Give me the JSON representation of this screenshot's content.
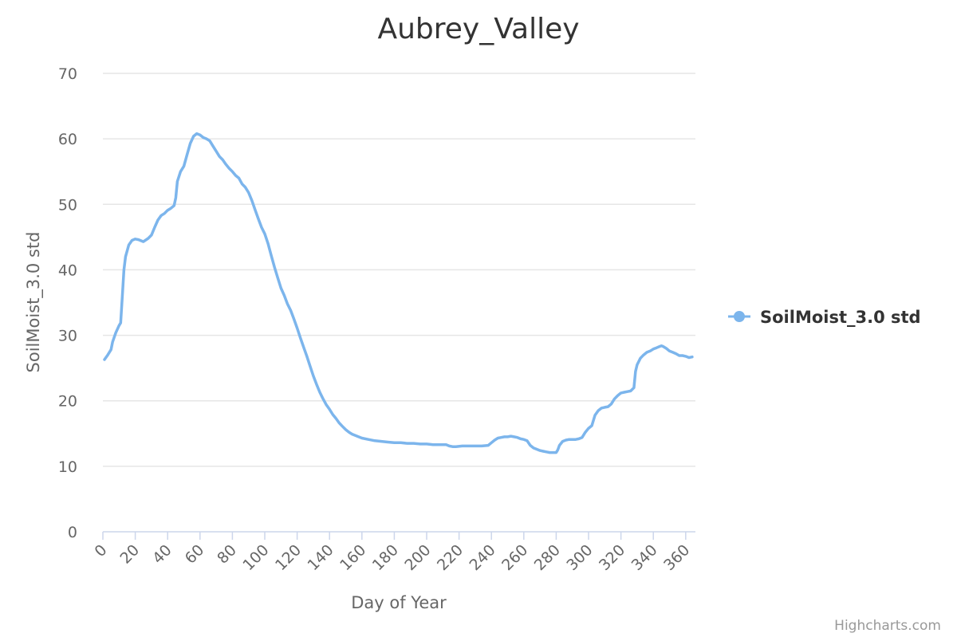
{
  "chart_data": {
    "type": "line",
    "title": "Aubrey_Valley",
    "xlabel": "Day of Year",
    "ylabel": "SoilMoist_3.0 std",
    "xlim": [
      0,
      366
    ],
    "ylim": [
      0,
      70
    ],
    "x_ticks": [
      0,
      20,
      40,
      60,
      80,
      100,
      120,
      140,
      160,
      180,
      200,
      220,
      240,
      260,
      280,
      300,
      320,
      340,
      360
    ],
    "y_ticks": [
      0,
      10,
      20,
      30,
      40,
      50,
      60,
      70
    ],
    "x_tick_labels": [
      "0",
      "20",
      "40",
      "60",
      "80",
      "100",
      "120",
      "140",
      "160",
      "180",
      "200",
      "220",
      "240",
      "260",
      "280",
      "300",
      "320",
      "340",
      "360"
    ],
    "y_tick_labels": [
      "0",
      "10",
      "20",
      "30",
      "40",
      "50",
      "60",
      "70"
    ],
    "grid": true,
    "legend_position": "right",
    "series": [
      {
        "name": "SoilMoist_3.0 std",
        "color": "#7cb5ec",
        "x": [
          1,
          3,
          5,
          6,
          8,
          10,
          11,
          12,
          13,
          14,
          16,
          18,
          20,
          22,
          25,
          28,
          30,
          32,
          34,
          36,
          38,
          40,
          42,
          44,
          45,
          46,
          48,
          50,
          52,
          54,
          56,
          58,
          60,
          62,
          64,
          66,
          68,
          70,
          72,
          74,
          76,
          78,
          80,
          82,
          84,
          86,
          88,
          90,
          92,
          94,
          96,
          98,
          100,
          102,
          104,
          106,
          108,
          110,
          112,
          114,
          116,
          118,
          120,
          122,
          124,
          126,
          128,
          130,
          132,
          134,
          136,
          138,
          140,
          142,
          144,
          146,
          148,
          150,
          152,
          154,
          156,
          158,
          160,
          164,
          168,
          172,
          176,
          180,
          184,
          188,
          192,
          196,
          200,
          204,
          208,
          212,
          214,
          216,
          218,
          222,
          226,
          230,
          234,
          238,
          240,
          242,
          244,
          246,
          248,
          250,
          252,
          254,
          256,
          258,
          260,
          262,
          264,
          266,
          268,
          270,
          272,
          274,
          276,
          278,
          280,
          281,
          282,
          284,
          286,
          288,
          290,
          292,
          294,
          296,
          298,
          300,
          302,
          304,
          306,
          308,
          310,
          312,
          314,
          316,
          318,
          320,
          322,
          324,
          326,
          328,
          329,
          330,
          332,
          334,
          336,
          338,
          340,
          342,
          344,
          345,
          346,
          348,
          350,
          352,
          354,
          356,
          358,
          360,
          362,
          364
        ],
        "values": [
          26.3,
          27.0,
          27.8,
          29.0,
          30.4,
          31.5,
          31.9,
          36.0,
          40.0,
          42.0,
          43.8,
          44.5,
          44.7,
          44.6,
          44.3,
          44.8,
          45.3,
          46.5,
          47.6,
          48.3,
          48.6,
          49.1,
          49.4,
          49.8,
          51.0,
          53.5,
          55.0,
          55.8,
          57.6,
          59.3,
          60.4,
          60.8,
          60.6,
          60.2,
          60.0,
          59.7,
          58.9,
          58.1,
          57.3,
          56.8,
          56.1,
          55.5,
          55.0,
          54.4,
          54.0,
          53.1,
          52.6,
          51.8,
          50.6,
          49.2,
          47.8,
          46.5,
          45.5,
          44.0,
          42.2,
          40.4,
          38.8,
          37.2,
          36.1,
          34.8,
          33.8,
          32.5,
          31.1,
          29.6,
          28.2,
          26.8,
          25.3,
          23.8,
          22.5,
          21.3,
          20.3,
          19.4,
          18.7,
          17.9,
          17.3,
          16.6,
          16.1,
          15.6,
          15.2,
          14.9,
          14.7,
          14.5,
          14.3,
          14.1,
          13.9,
          13.8,
          13.7,
          13.6,
          13.6,
          13.5,
          13.5,
          13.4,
          13.4,
          13.3,
          13.3,
          13.3,
          13.1,
          13.0,
          13.0,
          13.1,
          13.1,
          13.1,
          13.1,
          13.2,
          13.6,
          14.0,
          14.3,
          14.4,
          14.5,
          14.5,
          14.6,
          14.5,
          14.4,
          14.2,
          14.1,
          13.9,
          13.2,
          12.8,
          12.6,
          12.4,
          12.3,
          12.2,
          12.1,
          12.1,
          12.1,
          12.5,
          13.2,
          13.8,
          14.0,
          14.1,
          14.1,
          14.1,
          14.2,
          14.4,
          15.2,
          15.8,
          16.2,
          17.8,
          18.5,
          18.9,
          19.0,
          19.1,
          19.5,
          20.3,
          20.8,
          21.2,
          21.3,
          21.4,
          21.5,
          22.0,
          24.5,
          25.5,
          26.5,
          27.0,
          27.4,
          27.6,
          27.9,
          28.1,
          28.3,
          28.4,
          28.3,
          28.0,
          27.6,
          27.4,
          27.2,
          26.9,
          26.9,
          26.8,
          26.6,
          26.7
        ]
      }
    ]
  },
  "credits": "Highcharts.com"
}
